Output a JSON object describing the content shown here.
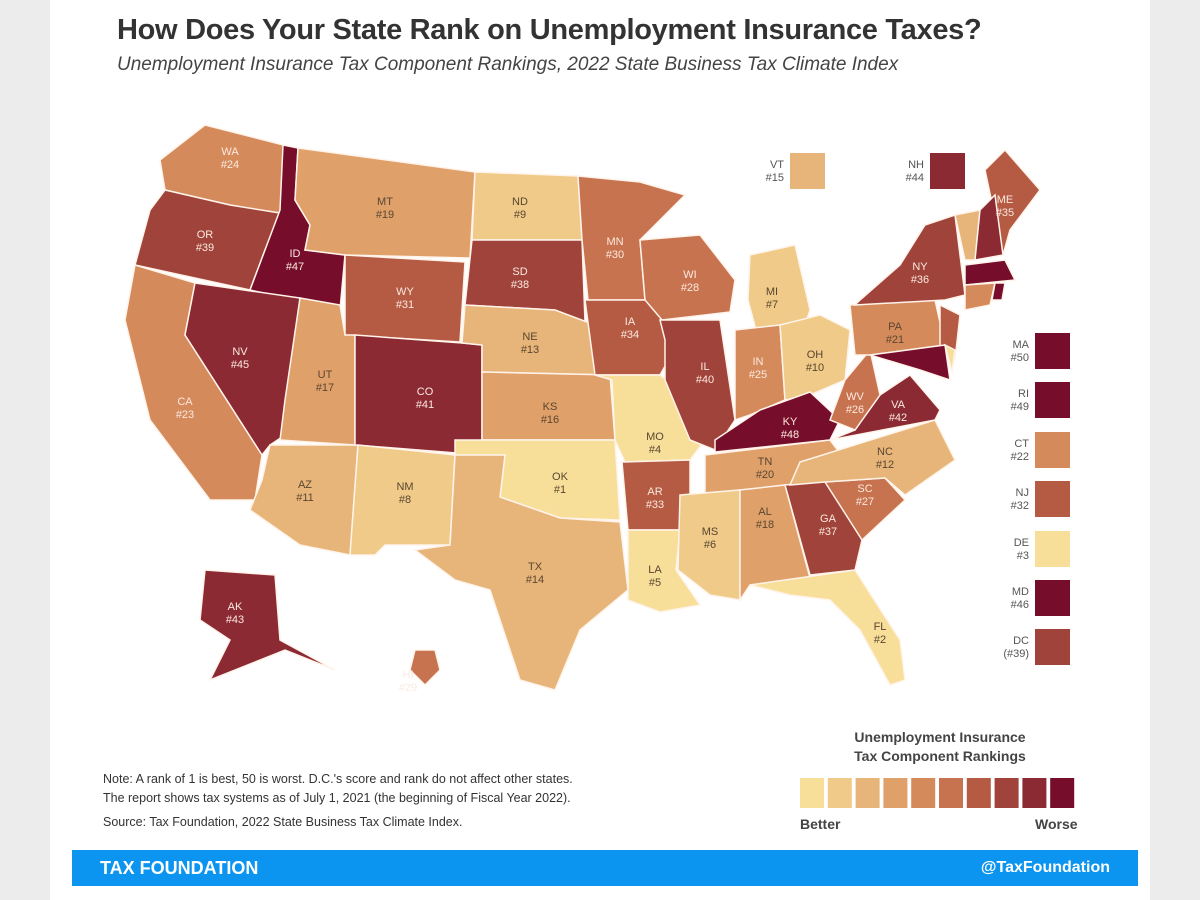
{
  "title": "How Does Your State Rank on Unemployment Insurance Taxes?",
  "subtitle": "Unemployment Insurance Tax Component Rankings, 2022 State Business Tax Climate Index",
  "states": [
    {
      "abbr": "WA",
      "rank": "#24",
      "value": 24
    },
    {
      "abbr": "OR",
      "rank": "#39",
      "value": 39
    },
    {
      "abbr": "CA",
      "rank": "#23",
      "value": 23
    },
    {
      "abbr": "ID",
      "rank": "#47",
      "value": 47
    },
    {
      "abbr": "NV",
      "rank": "#45",
      "value": 45
    },
    {
      "abbr": "MT",
      "rank": "#19",
      "value": 19
    },
    {
      "abbr": "WY",
      "rank": "#31",
      "value": 31
    },
    {
      "abbr": "UT",
      "rank": "#17",
      "value": 17
    },
    {
      "abbr": "AZ",
      "rank": "#11",
      "value": 11
    },
    {
      "abbr": "CO",
      "rank": "#41",
      "value": 41
    },
    {
      "abbr": "NM",
      "rank": "#8",
      "value": 8
    },
    {
      "abbr": "ND",
      "rank": "#9",
      "value": 9
    },
    {
      "abbr": "SD",
      "rank": "#38",
      "value": 38
    },
    {
      "abbr": "NE",
      "rank": "#13",
      "value": 13
    },
    {
      "abbr": "KS",
      "rank": "#16",
      "value": 16
    },
    {
      "abbr": "OK",
      "rank": "#1",
      "value": 1
    },
    {
      "abbr": "TX",
      "rank": "#14",
      "value": 14
    },
    {
      "abbr": "MN",
      "rank": "#30",
      "value": 30
    },
    {
      "abbr": "IA",
      "rank": "#34",
      "value": 34
    },
    {
      "abbr": "MO",
      "rank": "#4",
      "value": 4
    },
    {
      "abbr": "AR",
      "rank": "#33",
      "value": 33
    },
    {
      "abbr": "LA",
      "rank": "#5",
      "value": 5
    },
    {
      "abbr": "WI",
      "rank": "#28",
      "value": 28
    },
    {
      "abbr": "IL",
      "rank": "#40",
      "value": 40
    },
    {
      "abbr": "MI",
      "rank": "#7",
      "value": 7
    },
    {
      "abbr": "IN",
      "rank": "#25",
      "value": 25
    },
    {
      "abbr": "OH",
      "rank": "#10",
      "value": 10
    },
    {
      "abbr": "KY",
      "rank": "#48",
      "value": 48
    },
    {
      "abbr": "TN",
      "rank": "#20",
      "value": 20
    },
    {
      "abbr": "MS",
      "rank": "#6",
      "value": 6
    },
    {
      "abbr": "AL",
      "rank": "#18",
      "value": 18
    },
    {
      "abbr": "GA",
      "rank": "#37",
      "value": 37
    },
    {
      "abbr": "FL",
      "rank": "#2",
      "value": 2
    },
    {
      "abbr": "SC",
      "rank": "#27",
      "value": 27
    },
    {
      "abbr": "NC",
      "rank": "#12",
      "value": 12
    },
    {
      "abbr": "VA",
      "rank": "#42",
      "value": 42
    },
    {
      "abbr": "WV",
      "rank": "#26",
      "value": 26
    },
    {
      "abbr": "PA",
      "rank": "#21",
      "value": 21
    },
    {
      "abbr": "NY",
      "rank": "#36",
      "value": 36
    },
    {
      "abbr": "ME",
      "rank": "#35",
      "value": 35
    },
    {
      "abbr": "AK",
      "rank": "#43",
      "value": 43
    },
    {
      "abbr": "HI",
      "rank": "#29",
      "value": 29
    }
  ],
  "insets": [
    {
      "abbr": "VT",
      "rank": "#15",
      "value": 15
    },
    {
      "abbr": "NH",
      "rank": "#44",
      "value": 44
    },
    {
      "abbr": "MA",
      "rank": "#50",
      "value": 50
    },
    {
      "abbr": "RI",
      "rank": "#49",
      "value": 49
    },
    {
      "abbr": "CT",
      "rank": "#22",
      "value": 22
    },
    {
      "abbr": "NJ",
      "rank": "#32",
      "value": 32
    },
    {
      "abbr": "DE",
      "rank": "#3",
      "value": 3
    },
    {
      "abbr": "MD",
      "rank": "#46",
      "value": 46
    },
    {
      "abbr": "DC",
      "rank": "(#39)",
      "value": 39
    }
  ],
  "scale_colors": [
    "#f7df9a",
    "#efca88",
    "#e7b579",
    "#dfa06a",
    "#d58a5c",
    "#c8734f",
    "#b55b44",
    "#a0433a",
    "#8b2a33",
    "#760d2b"
  ],
  "legend": {
    "title_line1": "Unemployment Insurance",
    "title_line2": "Tax Component Rankings",
    "better": "Better",
    "worse": "Worse"
  },
  "notes": {
    "line1": "Note: A rank of 1 is best, 50 is worst.  D.C.'s score and rank do not affect other states.",
    "line2": "The report shows tax systems as of July 1, 2021 (the beginning of Fiscal Year 2022).",
    "source": "Source: Tax Foundation, 2022 State Business Tax Climate Index."
  },
  "footer": {
    "brand": "TAX FOUNDATION",
    "handle": "@TaxFoundation"
  }
}
